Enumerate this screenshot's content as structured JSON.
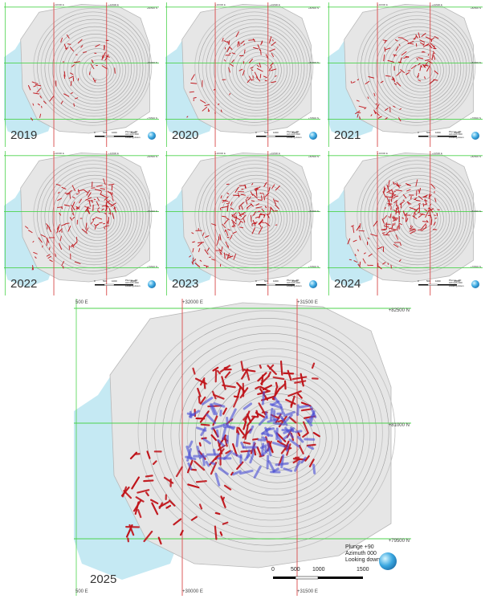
{
  "panels": [
    {
      "year": "2019",
      "coord_n_top": "+82500 N",
      "coord_n_mid": "+81000 N",
      "coord_n_bot": "+79500 N",
      "coord_e_left": "+32000 E",
      "coord_e_right": "+31500 E",
      "legend_line1": "Plunge +90",
      "legend_line2": "Azimuth 000",
      "legend_line3": "Looking down",
      "scale": [
        "0",
        "500",
        "1000",
        "1500"
      ],
      "density": 0.3,
      "blue": false
    },
    {
      "year": "2020",
      "coord_n_top": "+82500 N",
      "coord_n_mid": "+81000 N",
      "coord_n_bot": "+79500 N",
      "coord_e_left": "+32000 E",
      "coord_e_right": "+31500 E",
      "legend_line1": "Plunge +90",
      "legend_line2": "Azimuth 000",
      "legend_line3": "Looking down",
      "scale": [
        "0",
        "500",
        "1000",
        "1500"
      ],
      "density": 0.4,
      "blue": false
    },
    {
      "year": "2021",
      "coord_n_top": "+82500 N",
      "coord_n_mid": "+81000 N",
      "coord_n_bot": "+79500 N",
      "coord_e_left": "+32000 E",
      "coord_e_right": "+31500 E",
      "legend_line1": "Plunge +90",
      "legend_line2": "Azimuth 000",
      "legend_line3": "Looking down",
      "scale": [
        "0",
        "500",
        "1000",
        "1500"
      ],
      "density": 0.55,
      "blue": false
    },
    {
      "year": "2022",
      "coord_n_top": "+82500 N",
      "coord_n_mid": "+81000 N",
      "coord_n_bot": "+79500 N",
      "coord_e_left": "+32000 E",
      "coord_e_right": "+31500 E",
      "legend_line1": "Plunge +90",
      "legend_line2": "Azimuth 000",
      "legend_line3": "Looking down",
      "scale": [
        "0",
        "500",
        "1000",
        "1500"
      ],
      "density": 0.7,
      "blue": false
    },
    {
      "year": "2023",
      "coord_n_top": "+82500 N",
      "coord_n_mid": "+81000 N",
      "coord_n_bot": "+79500 N",
      "coord_e_left": "+32000 E",
      "coord_e_right": "+31500 E",
      "legend_line1": "Plunge +90",
      "legend_line2": "Azimuth 000",
      "legend_line3": "Looking down",
      "scale": [
        "0",
        "500",
        "1000",
        "1500"
      ],
      "density": 0.8,
      "blue": false
    },
    {
      "year": "2024",
      "coord_n_top": "+82500 N",
      "coord_n_mid": "+81000 N",
      "coord_n_bot": "+79500 N",
      "coord_e_left": "+32000 E",
      "coord_e_right": "+31500 E",
      "legend_line1": "Plunge +90",
      "legend_line2": "Azimuth 000",
      "legend_line3": "Looking down",
      "scale": [
        "0",
        "500",
        "1000",
        "1500"
      ],
      "density": 0.9,
      "blue": false
    }
  ],
  "main": {
    "year": "2025",
    "coord_n_top": "+82500 N",
    "coord_n_mid": "+81000 N",
    "coord_n_bot": "+79500 N",
    "coord_e_top_left": "500 E",
    "coord_e_top_mid": "+32000 E",
    "coord_e_top_right": "+31500 E",
    "coord_e_bot_left": "500 E",
    "coord_e_bot_mid": "+30000 E",
    "coord_e_bot_right": "+31500 E",
    "legend_line1": "Plunge +90",
    "legend_line2": "Azimuth 000",
    "legend_line3": "Looking down",
    "scale": [
      "0",
      "500",
      "1000",
      "1500"
    ]
  },
  "colors": {
    "grid_green": "#4cd34c",
    "grid_red": "#d84a4a",
    "water": "#bfe7f2",
    "pit": "#bdbdbd",
    "drill_red": "#c0141a",
    "drill_blue": "#4b4fd6"
  }
}
